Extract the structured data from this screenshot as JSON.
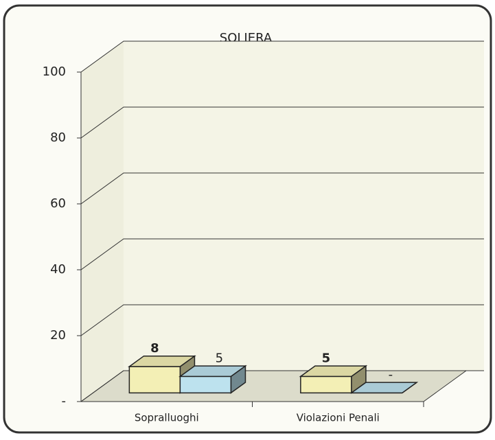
{
  "chart_data": {
    "type": "bar3d",
    "title": "SOLIERA",
    "categories": [
      "Sopralluoghi",
      "Violazioni Penali"
    ],
    "series": [
      {
        "color": "#f3efb5",
        "values": [
          8,
          5
        ],
        "value_labels": [
          "8",
          "5"
        ]
      },
      {
        "color": "#bde2ee",
        "values": [
          5,
          0
        ],
        "value_labels": [
          "5",
          "-"
        ]
      }
    ],
    "ylim": [
      0,
      100
    ],
    "yticks": [
      {
        "value": 0,
        "label": "-"
      },
      20,
      40,
      60,
      80,
      100
    ],
    "grid": true
  }
}
